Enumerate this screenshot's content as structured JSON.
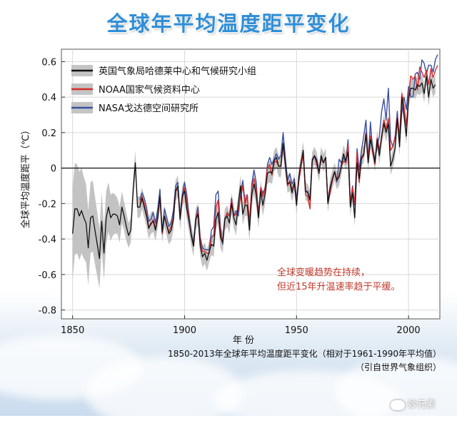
{
  "page_title": "全球年平均温度距平变化",
  "chart_data": {
    "type": "line",
    "title": "全球年平均温度距平变化",
    "xlabel": "年 份",
    "ylabel": "全球平均温度距平（℃）",
    "xlim": [
      1845,
      2014
    ],
    "ylim": [
      -0.85,
      0.67
    ],
    "xticks": [
      1850,
      1900,
      1950,
      2000
    ],
    "yticks": [
      -0.8,
      -0.6,
      -0.4,
      -0.2,
      0,
      0.2,
      0.4,
      0.6
    ],
    "ytick_labels": [
      "-0.8",
      "-0.6",
      "-0.4",
      "-0.2",
      "0",
      "0.2",
      "0.4",
      "0.6"
    ],
    "grid": true,
    "legend_position": "top-left",
    "series": [
      {
        "name": "英国气象局哈德莱中心和气候研究小组",
        "color": "#111111",
        "start_year": 1850,
        "values": [
          -0.37,
          -0.23,
          -0.23,
          -0.27,
          -0.24,
          -0.28,
          -0.31,
          -0.45,
          -0.28,
          -0.27,
          -0.35,
          -0.43,
          -0.51,
          -0.3,
          -0.48,
          -0.28,
          -0.22,
          -0.28,
          -0.26,
          -0.26,
          -0.27,
          -0.32,
          -0.22,
          -0.27,
          -0.33,
          -0.38,
          -0.35,
          -0.13,
          0.03,
          -0.22,
          -0.22,
          -0.17,
          -0.22,
          -0.27,
          -0.34,
          -0.31,
          -0.3,
          -0.35,
          -0.28,
          -0.16,
          -0.36,
          -0.27,
          -0.32,
          -0.37,
          -0.35,
          -0.29,
          -0.13,
          -0.1,
          -0.29,
          -0.16,
          -0.13,
          -0.23,
          -0.3,
          -0.38,
          -0.44,
          -0.29,
          -0.26,
          -0.44,
          -0.5,
          -0.48,
          -0.52,
          -0.47,
          -0.43,
          -0.44,
          -0.29,
          -0.25,
          -0.39,
          -0.42,
          -0.29,
          -0.27,
          -0.31,
          -0.2,
          -0.28,
          -0.32,
          -0.2,
          -0.1,
          -0.26,
          -0.21,
          -0.21,
          -0.35,
          -0.15,
          -0.09,
          -0.15,
          -0.28,
          -0.13,
          -0.21,
          -0.14,
          -0.03,
          -0.02,
          -0.03,
          0.04,
          0.06,
          0.01,
          0.01,
          0.14,
          0.02,
          -0.09,
          -0.08,
          -0.14,
          -0.08,
          -0.21,
          -0.05,
          0.03,
          0.1,
          -0.13,
          -0.14,
          -0.18,
          0.04,
          0.07,
          0.04,
          -0.03,
          0.07,
          0.03,
          0.06,
          -0.2,
          -0.11,
          -0.06,
          -0.02,
          -0.07,
          -0.05,
          0.01,
          0.08,
          0.04,
          0.09,
          -0.22,
          -0.14,
          -0.28,
          0.03,
          -0.06,
          0.06,
          0.08,
          0.19,
          0.03,
          0.16,
          0.11,
          0.03,
          0.16,
          0.07,
          0.18,
          0.25,
          0.2,
          0.25,
          0.01,
          0.05,
          0.11,
          0.28,
          0.12,
          0.4,
          0.3,
          0.18,
          0.39,
          0.45,
          0.45,
          0.44,
          0.47,
          0.46,
          0.48,
          0.42,
          0.52,
          0.4,
          0.5,
          0.45,
          0.47
        ],
        "band_start_year": 1850,
        "band_halfwidth": [
          0.26,
          0.26,
          0.25,
          0.25,
          0.24,
          0.23,
          0.22,
          0.21,
          0.2,
          0.2,
          0.19,
          0.18,
          0.17,
          0.16,
          0.15,
          0.15,
          0.14,
          0.13,
          0.12,
          0.11,
          0.1,
          0.1,
          0.09,
          0.08,
          0.08,
          0.07,
          0.07,
          0.07,
          0.07,
          0.06,
          0.06,
          0.06,
          0.06,
          0.06,
          0.06,
          0.06,
          0.06,
          0.06,
          0.06,
          0.06,
          0.06,
          0.06,
          0.06,
          0.06,
          0.06,
          0.06,
          0.06,
          0.06,
          0.06,
          0.06,
          0.06,
          0.06,
          0.06,
          0.06,
          0.06,
          0.06,
          0.06,
          0.06,
          0.06,
          0.06,
          0.06,
          0.06,
          0.06,
          0.06,
          0.06,
          0.06,
          0.06,
          0.06,
          0.06,
          0.06,
          0.06,
          0.06,
          0.06,
          0.06,
          0.06,
          0.06,
          0.06,
          0.06,
          0.06,
          0.06,
          0.06,
          0.06,
          0.06,
          0.06,
          0.06,
          0.06,
          0.06,
          0.06,
          0.06,
          0.06,
          0.06,
          0.06,
          0.06,
          0.06,
          0.06,
          0.06,
          0.05,
          0.05,
          0.05,
          0.05,
          0.05,
          0.05,
          0.05,
          0.05,
          0.05,
          0.05,
          0.05,
          0.05,
          0.05,
          0.05,
          0.05,
          0.05,
          0.05,
          0.05,
          0.05,
          0.05,
          0.05,
          0.05,
          0.05,
          0.05,
          0.05,
          0.05,
          0.05,
          0.05,
          0.05,
          0.05,
          0.05,
          0.05,
          0.05,
          0.05,
          0.05,
          0.05,
          0.05,
          0.05,
          0.05,
          0.05,
          0.05,
          0.05,
          0.05,
          0.05,
          0.05,
          0.05,
          0.05,
          0.05,
          0.05,
          0.05,
          0.05,
          0.05,
          0.05,
          0.05,
          0.05,
          0.05,
          0.05,
          0.05,
          0.05,
          0.05,
          0.05,
          0.05,
          0.05,
          0.05,
          0.05,
          0.05,
          0.05,
          0.05,
          0.05,
          0.05
        ]
      },
      {
        "name": "NOAA国家气候资料中心",
        "color": "#d62b2b",
        "start_year": 1880,
        "values": [
          -0.2,
          -0.16,
          -0.2,
          -0.26,
          -0.33,
          -0.32,
          -0.29,
          -0.34,
          -0.27,
          -0.16,
          -0.37,
          -0.27,
          -0.32,
          -0.36,
          -0.33,
          -0.28,
          -0.13,
          -0.12,
          -0.28,
          -0.17,
          -0.11,
          -0.19,
          -0.29,
          -0.38,
          -0.44,
          -0.29,
          -0.24,
          -0.41,
          -0.47,
          -0.47,
          -0.48,
          -0.48,
          -0.39,
          -0.38,
          -0.22,
          -0.18,
          -0.36,
          -0.42,
          -0.29,
          -0.25,
          -0.27,
          -0.18,
          -0.27,
          -0.26,
          -0.24,
          -0.17,
          -0.1,
          -0.21,
          -0.15,
          -0.3,
          -0.11,
          -0.06,
          -0.12,
          -0.26,
          -0.11,
          -0.16,
          -0.11,
          0.0,
          0.02,
          -0.04,
          0.03,
          0.04,
          0.01,
          0.01,
          0.13,
          0.02,
          -0.1,
          -0.07,
          -0.12,
          -0.09,
          -0.19,
          -0.08,
          0.01,
          0.08,
          -0.15,
          -0.16,
          -0.23,
          0.04,
          0.07,
          0.02,
          -0.02,
          0.06,
          0.03,
          0.06,
          -0.2,
          -0.14,
          -0.07,
          -0.02,
          -0.07,
          -0.04,
          0.01,
          0.04,
          0.03,
          0.13,
          -0.2,
          -0.11,
          -0.2,
          0.09,
          -0.08,
          0.05,
          0.07,
          0.2,
          0.06,
          0.18,
          0.09,
          0.02,
          0.17,
          0.1,
          0.17,
          0.27,
          0.22,
          0.28,
          0.1,
          0.12,
          0.17,
          0.29,
          0.18,
          0.42,
          0.35,
          0.24,
          0.4,
          0.52,
          0.5,
          0.52,
          0.44,
          0.57,
          0.54,
          0.51,
          0.55,
          0.47,
          0.56,
          0.51,
          0.55,
          0.58
        ]
      },
      {
        "name": "NASA戈达德空间研究所",
        "color": "#3a4fa0",
        "start_year": 1880,
        "values": [
          -0.18,
          -0.14,
          -0.17,
          -0.22,
          -0.3,
          -0.29,
          -0.25,
          -0.31,
          -0.23,
          -0.12,
          -0.36,
          -0.23,
          -0.28,
          -0.33,
          -0.31,
          -0.24,
          -0.1,
          -0.08,
          -0.27,
          -0.15,
          -0.08,
          -0.15,
          -0.27,
          -0.37,
          -0.42,
          -0.28,
          -0.22,
          -0.39,
          -0.45,
          -0.46,
          -0.46,
          -0.46,
          -0.35,
          -0.33,
          -0.15,
          -0.13,
          -0.33,
          -0.43,
          -0.28,
          -0.26,
          -0.27,
          -0.17,
          -0.27,
          -0.24,
          -0.27,
          -0.15,
          -0.07,
          -0.19,
          -0.15,
          -0.34,
          -0.09,
          -0.01,
          -0.08,
          -0.27,
          -0.11,
          -0.14,
          -0.11,
          0.02,
          0.06,
          0.02,
          0.05,
          0.08,
          0.05,
          0.07,
          0.2,
          0.06,
          -0.07,
          -0.03,
          -0.09,
          -0.06,
          -0.17,
          -0.07,
          0.01,
          0.08,
          -0.13,
          -0.13,
          -0.18,
          0.05,
          0.07,
          0.05,
          -0.02,
          0.05,
          0.03,
          0.06,
          -0.19,
          -0.11,
          -0.06,
          -0.02,
          -0.08,
          0.05,
          0.03,
          0.06,
          0.03,
          0.16,
          -0.2,
          -0.1,
          -0.21,
          0.11,
          -0.01,
          0.1,
          0.18,
          0.27,
          0.05,
          0.26,
          0.09,
          0.05,
          0.12,
          0.18,
          0.32,
          0.39,
          0.27,
          0.45,
          0.16,
          0.12,
          0.18,
          0.32,
          0.14,
          0.31,
          0.4,
          0.33,
          0.46,
          0.4,
          0.4,
          0.53,
          0.54,
          0.5,
          0.61,
          0.59,
          0.53,
          0.58,
          0.58,
          0.54,
          0.61,
          0.64
        ]
      }
    ],
    "annotation": [
      "全球变暖趋势在持续，",
      "但近15年升温速率趋于平缓。"
    ],
    "annotation_color": "#c0392b"
  },
  "caption": {
    "line1": "1850-2013年全球年平均温度距平变化（相对于1961-1990年平均值）",
    "line2": "（引自世界气象组织）"
  },
  "watermark": "妙元素"
}
